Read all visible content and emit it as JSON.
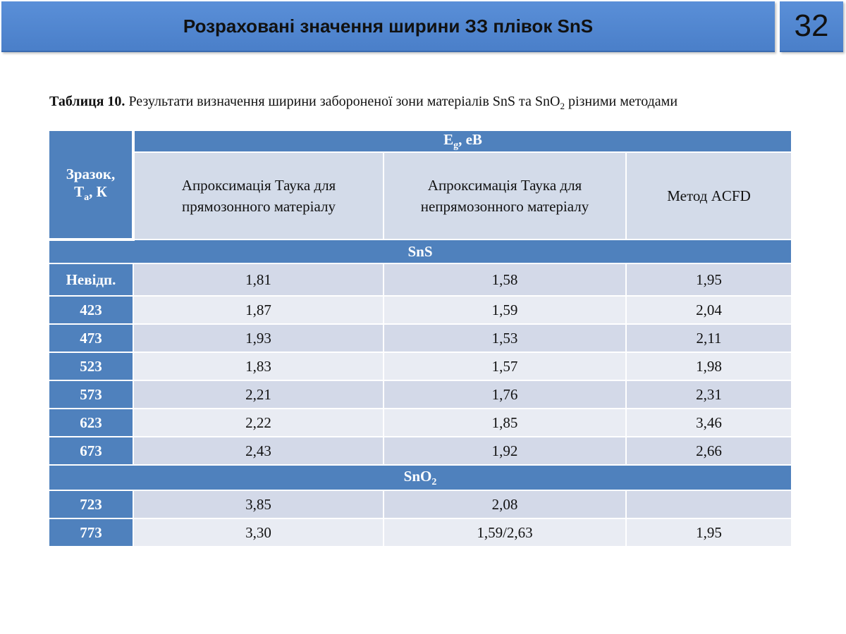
{
  "slide": {
    "title": "Розраховані значення ширини ЗЗ плівок SnS",
    "page_number": "32"
  },
  "caption": {
    "label": "Таблиця 10.",
    "text_before_sub": " Результати визначення ширини забороненої зони матеріалів SnS та SnO",
    "subscript": "2",
    "text_after_sub": " різними методами"
  },
  "table": {
    "side_header_line1": "Зразок,",
    "side_header_T": "T",
    "side_header_sub": "a",
    "side_header_unit": ", К",
    "top_header_E": "E",
    "top_header_sub": "g",
    "top_header_unit": ", еВ",
    "columns": [
      {
        "line1": "Апроксимація Таука для",
        "line2": "прямозонного матеріалу"
      },
      {
        "line1": "Апроксимація Таука для",
        "line2": "непрямозонного матеріалу"
      },
      {
        "line1": "Метод ACFD",
        "line2": ""
      }
    ],
    "group_sns": "SnS",
    "group_sno2_base": "SnO",
    "group_sno2_sub": "2",
    "sns_rows": [
      {
        "label": "Невідп.",
        "c1": "1,81",
        "c2": "1,58",
        "c3": "1,95"
      },
      {
        "label": "423",
        "c1": "1,87",
        "c2": "1,59",
        "c3": "2,04"
      },
      {
        "label": "473",
        "c1": "1,93",
        "c2": "1,53",
        "c3": "2,11"
      },
      {
        "label": "523",
        "c1": "1,83",
        "c2": "1,57",
        "c3": "1,98"
      },
      {
        "label": "573",
        "c1": "2,21",
        "c2": "1,76",
        "c3": "2,31"
      },
      {
        "label": "623",
        "c1": "2,22",
        "c2": "1,85",
        "c3": "3,46"
      },
      {
        "label": "673",
        "c1": "2,43",
        "c2": "1,92",
        "c3": "2,66"
      }
    ],
    "sno2_rows": [
      {
        "label": "723",
        "c1": "3,85",
        "c2": "2,08",
        "c3": ""
      },
      {
        "label": "773",
        "c1": "3,30",
        "c2": "1,59/2,63",
        "c3": "1,95"
      }
    ]
  }
}
